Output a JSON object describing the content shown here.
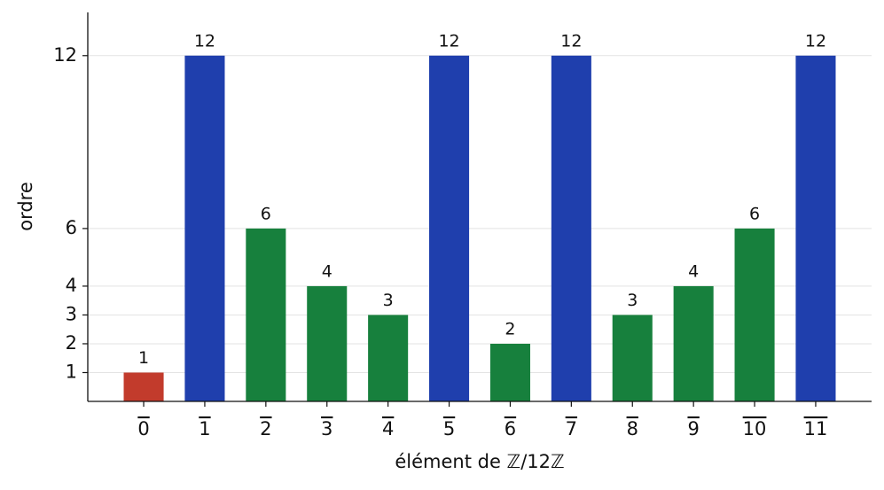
{
  "chart_data": {
    "type": "bar",
    "xlabel": "élément de ℤ/12ℤ",
    "ylabel": "ordre",
    "categories": [
      "0",
      "1",
      "2",
      "3",
      "4",
      "5",
      "6",
      "7",
      "8",
      "9",
      "10",
      "11"
    ],
    "values": [
      1,
      12,
      6,
      4,
      3,
      12,
      2,
      12,
      3,
      4,
      6,
      12
    ],
    "colors": [
      "#c23b2c",
      "#1f3fad",
      "#17803d",
      "#17803d",
      "#17803d",
      "#1f3fad",
      "#17803d",
      "#1f3fad",
      "#17803d",
      "#17803d",
      "#17803d",
      "#1f3fad"
    ],
    "ylim": [
      0,
      13.5
    ],
    "yticks": [
      1,
      2,
      3,
      4,
      6,
      12
    ],
    "grid": true
  }
}
